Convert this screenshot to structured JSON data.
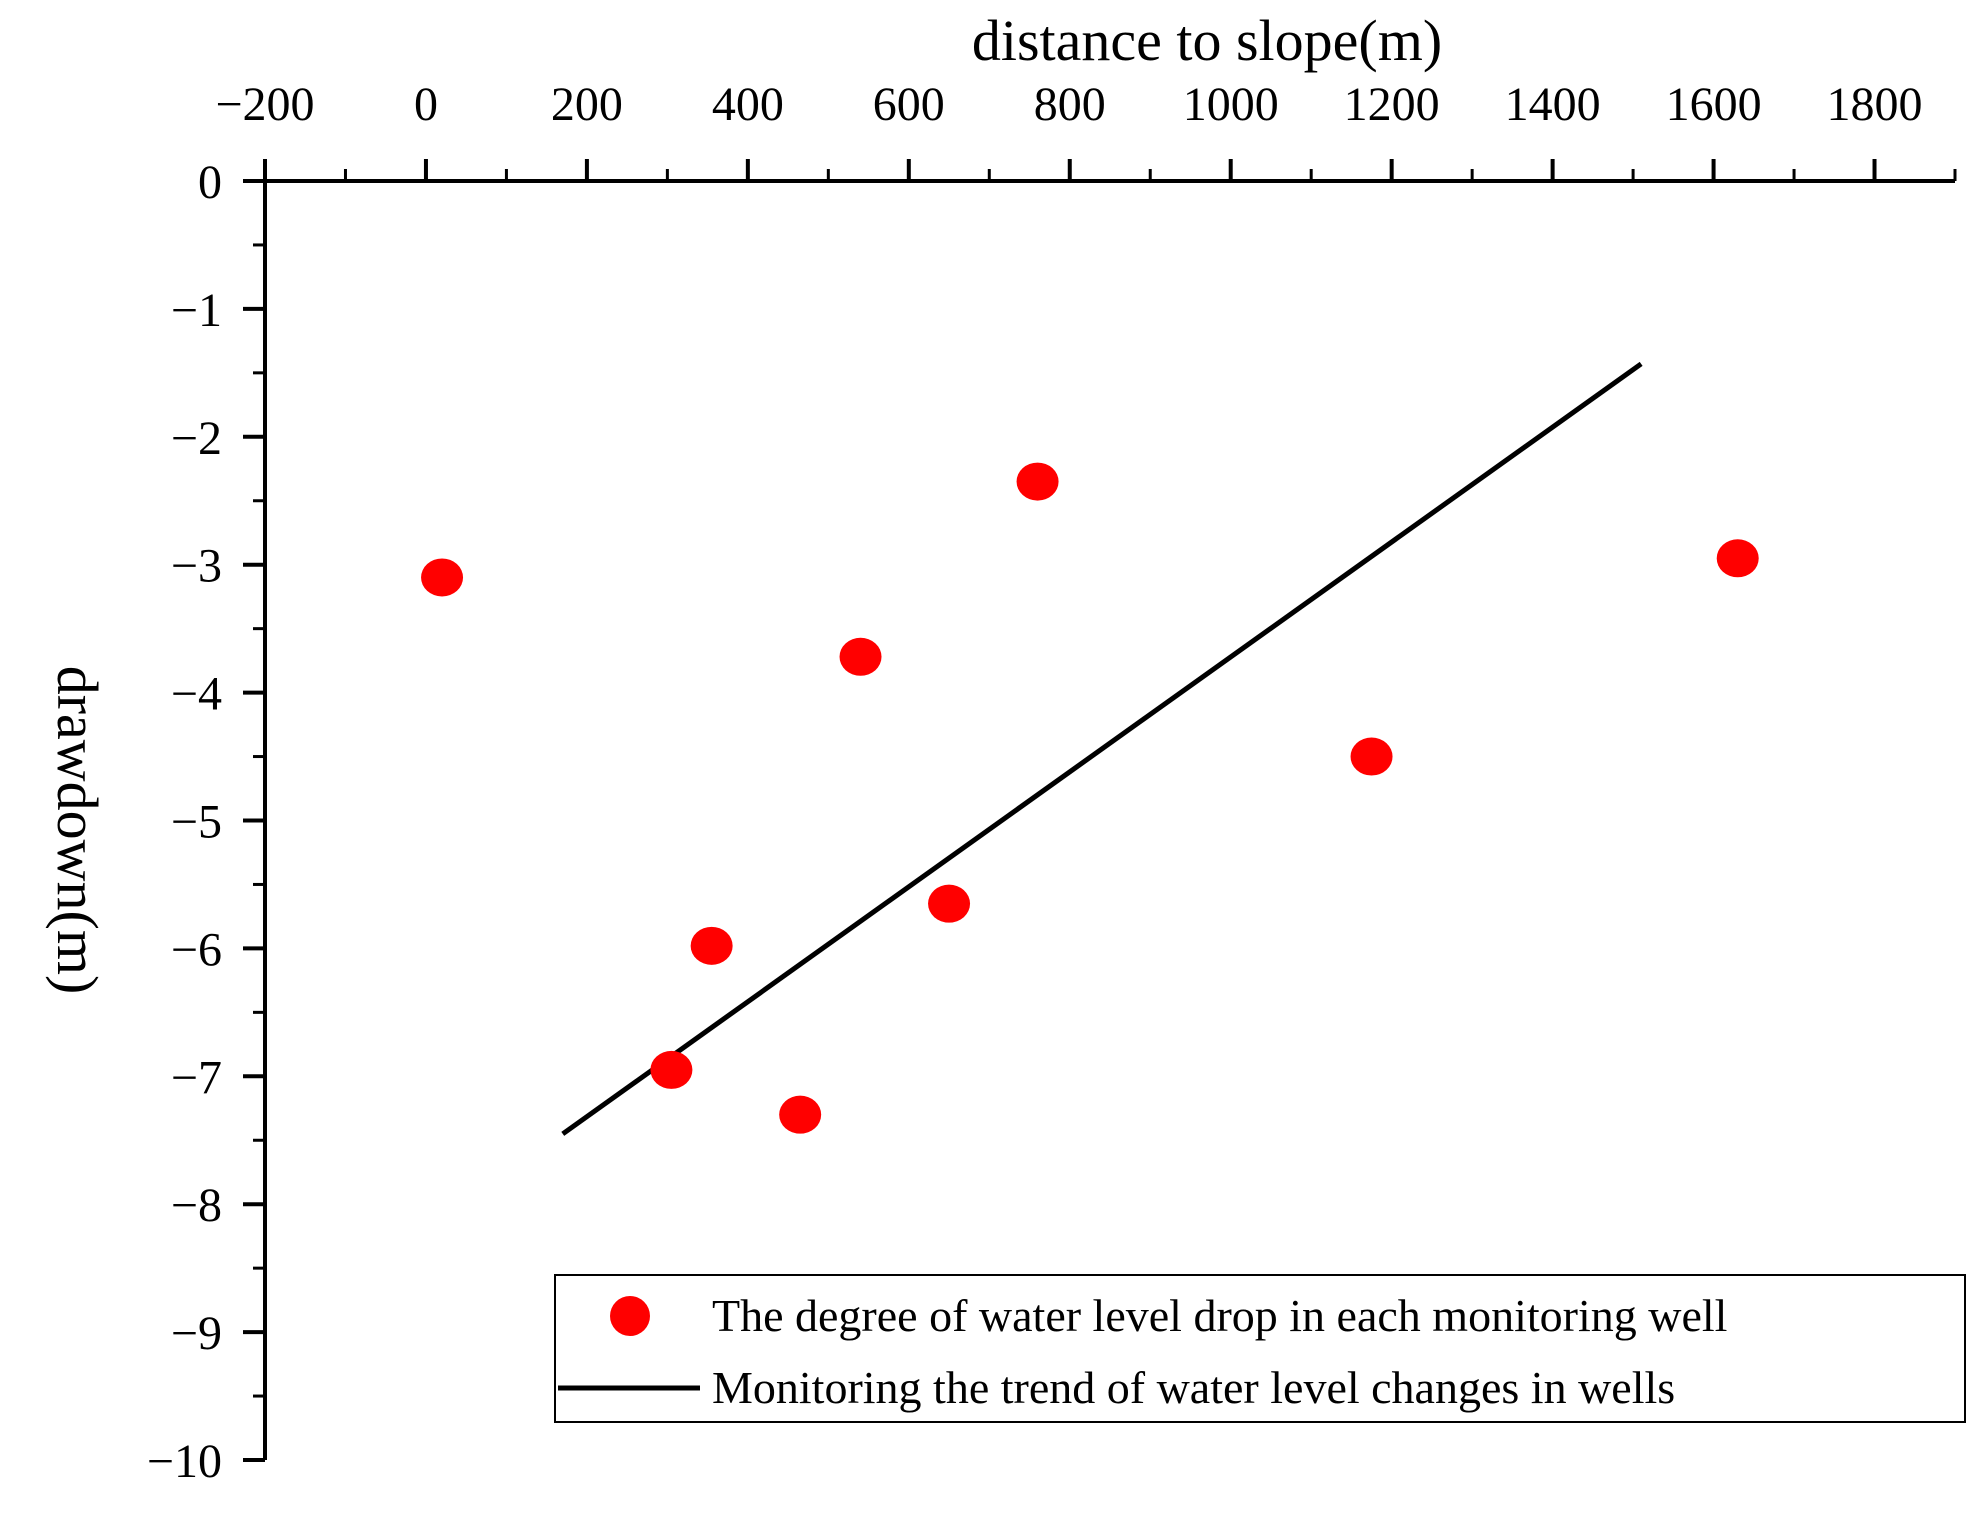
{
  "colors": {
    "point": "#ff0000",
    "line": "#000000",
    "axis": "#000000",
    "background": "#ffffff"
  },
  "chart_data": {
    "type": "scatter",
    "title": "",
    "xlabel": "distance to slope(m)",
    "ylabel": "drawdown(m)",
    "xaxis_position": "top",
    "xlim": [
      -200,
      1900
    ],
    "ylim": [
      -10,
      0
    ],
    "xticks": [
      -200,
      0,
      200,
      400,
      600,
      800,
      1000,
      1200,
      1400,
      1600,
      1800
    ],
    "xtick_labels": [
      "−200",
      "0",
      "200",
      "400",
      "600",
      "800",
      "1000",
      "1200",
      "1400",
      "1600",
      "1800"
    ],
    "yticks": [
      0,
      -1,
      -2,
      -3,
      -4,
      -5,
      -6,
      -7,
      -8,
      -9,
      -10
    ],
    "ytick_labels": [
      "0",
      "−1",
      "−2",
      "−3",
      "−4",
      "−5",
      "−6",
      "−7",
      "−8",
      "−9",
      "−10"
    ],
    "grid": false,
    "legend_position": "bottom-right",
    "series": [
      {
        "name": "The degree of water level drop in each monitoring well",
        "kind": "scatter",
        "x": [
          20,
          305,
          355,
          465,
          540,
          650,
          760,
          1175,
          1630
        ],
        "y": [
          -3.1,
          -6.95,
          -5.98,
          -7.3,
          -3.72,
          -5.65,
          -2.35,
          -4.5,
          -2.95
        ]
      },
      {
        "name": "Monitoring the trend of water level changes in wells",
        "kind": "line",
        "x": [
          170,
          1510
        ],
        "y": [
          -7.45,
          -1.43
        ]
      }
    ]
  }
}
